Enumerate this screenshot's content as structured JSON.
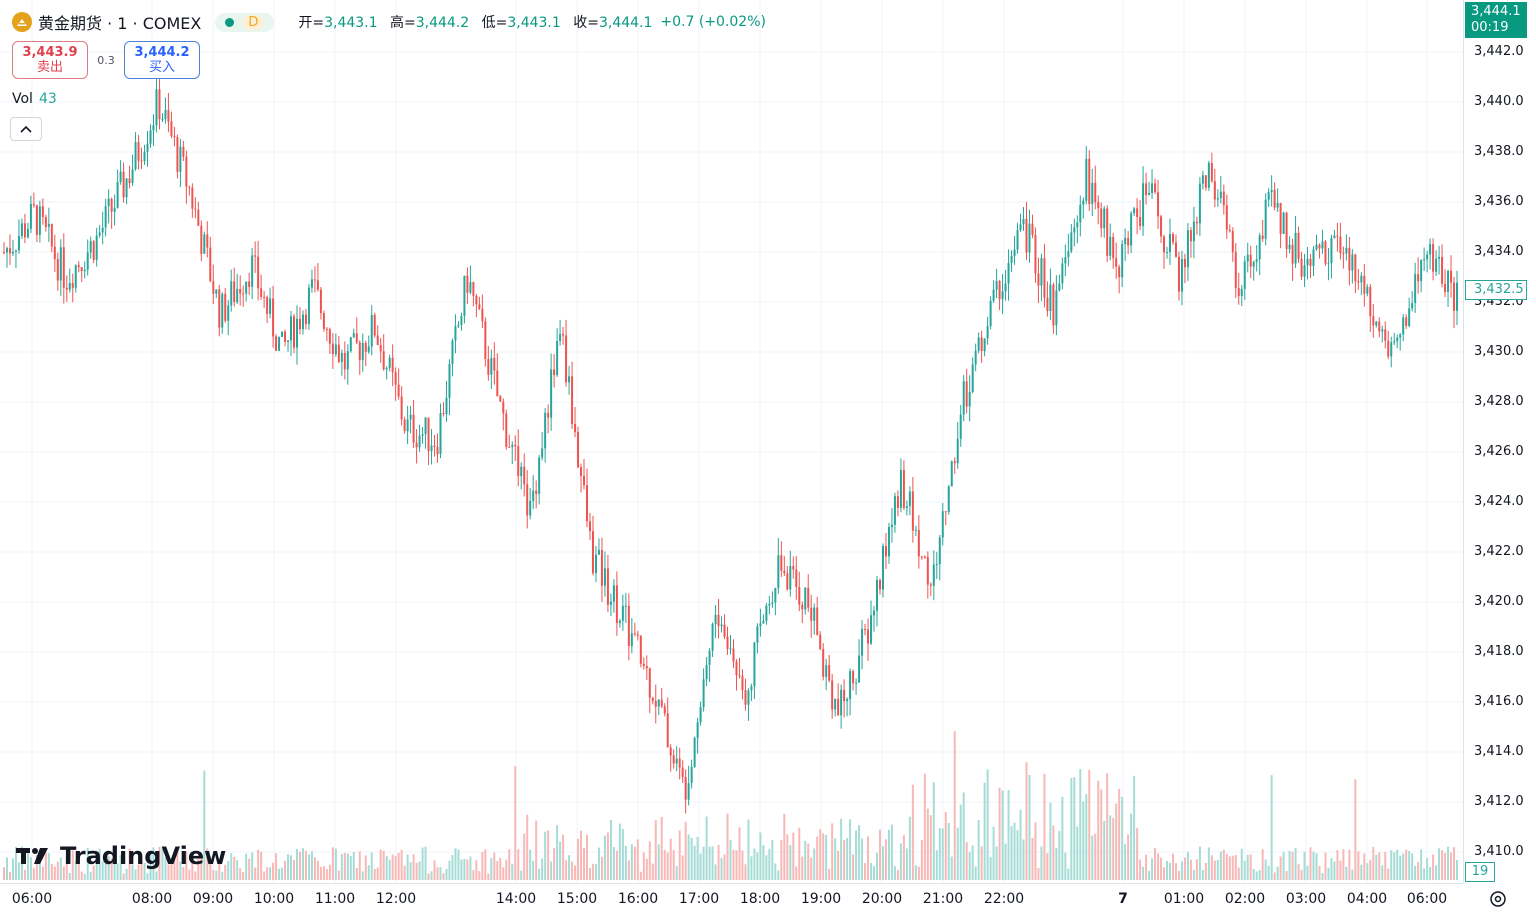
{
  "header": {
    "symbol": "黄金期货 · 1 · COMEX",
    "status_letter": "D",
    "ohlc": [
      {
        "key": "开=",
        "value": "3,443.1"
      },
      {
        "key": "高=",
        "value": "3,444.2"
      },
      {
        "key": "低=",
        "value": "3,443.1"
      },
      {
        "key": "收=",
        "value": "3,444.1"
      }
    ],
    "change": "+0.7 (+0.02%)"
  },
  "trade": {
    "sell_price": "3,443.9",
    "sell_label": "卖出",
    "spread": "0.3",
    "buy_price": "3,444.2",
    "buy_label": "买入"
  },
  "volume": {
    "label": "Vol",
    "value": "43"
  },
  "watermark": "TradingView",
  "price_axis": {
    "labels": [
      "3,442.0",
      "3,440.0",
      "3,438.0",
      "3,436.0",
      "3,434.0",
      "3,432.0",
      "3,430.0",
      "3,428.0",
      "3,426.0",
      "3,424.0",
      "3,422.0",
      "3,420.0",
      "3,418.0",
      "3,416.0",
      "3,414.0",
      "3,412.0",
      "3,410.0"
    ],
    "current_price": "3,444.1",
    "countdown": "00:19",
    "tag_price": "3,432.5",
    "volume_tag": "19"
  },
  "time_axis": {
    "labels": [
      "06:00",
      "08:00",
      "09:00",
      "10:00",
      "11:00",
      "12:00",
      "14:00",
      "15:00",
      "16:00",
      "17:00",
      "18:00",
      "19:00",
      "20:00",
      "21:00",
      "22:00",
      "7",
      "01:00",
      "02:00",
      "03:00",
      "04:00",
      "06:00"
    ]
  },
  "colors": {
    "up": "#26a69a",
    "down": "#ef5350",
    "current": "#089981",
    "grid": "#f0f3fa"
  },
  "chart_data": {
    "type": "candlestick",
    "interval": "1m",
    "y_range": [
      3409,
      3443.5
    ],
    "x": [
      "06:00",
      "08:00",
      "09:00",
      "10:00",
      "11:00",
      "12:00",
      "14:00",
      "15:00",
      "16:00",
      "17:00",
      "18:00",
      "19:00",
      "20:00",
      "21:00",
      "22:00",
      "7",
      "01:00",
      "02:00",
      "03:00",
      "04:00",
      "06:00"
    ],
    "close_path": [
      3434.0,
      3435.5,
      3433.0,
      3434.5,
      3437.0,
      3440.0,
      3436.5,
      3431.5,
      3433.5,
      3430.0,
      3432.5,
      3429.5,
      3431.0,
      3427.0,
      3426.5,
      3433.0,
      3428.0,
      3423.5,
      3431.0,
      3422.0,
      3419.5,
      3416.5,
      3412.5,
      3419.5,
      3416.5,
      3421.5,
      3420.0,
      3415.5,
      3419.0,
      3425.0,
      3420.5,
      3428.0,
      3432.0,
      3435.0,
      3431.5,
      3437.0,
      3433.5,
      3436.5,
      3433.0,
      3437.5,
      3432.5,
      3436.0,
      3433.5,
      3434.5,
      3432.5,
      3430.0,
      3434.0,
      3432.0
    ],
    "grid": true
  }
}
